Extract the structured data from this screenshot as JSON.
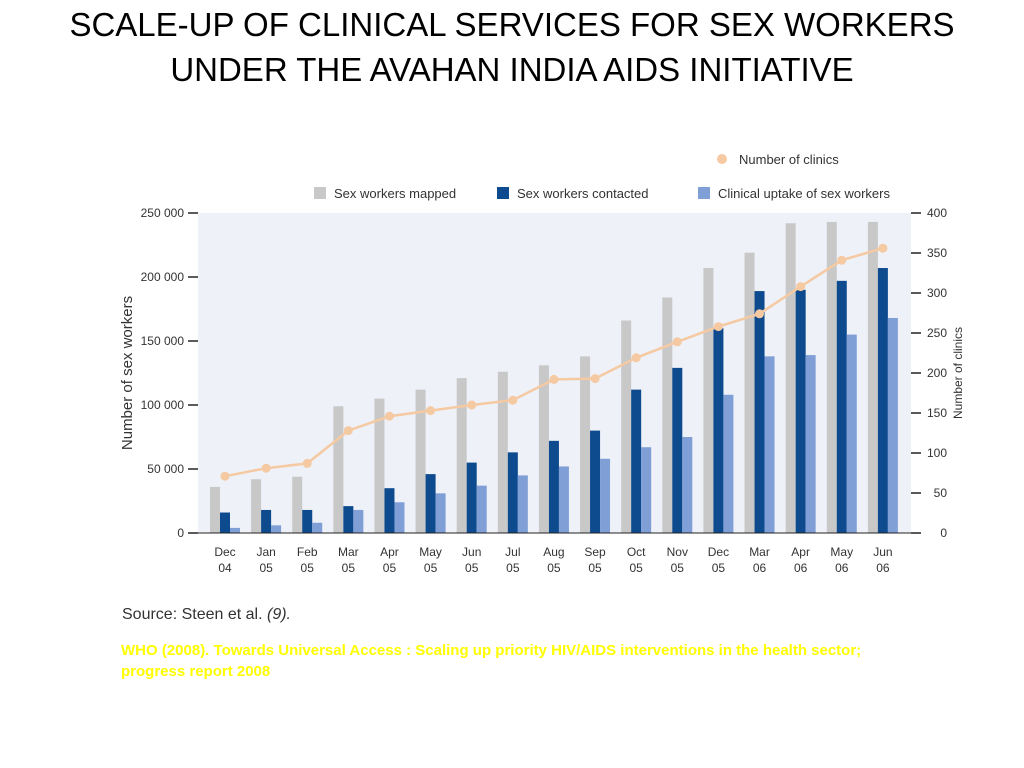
{
  "slide": {
    "title": "SCALE-UP OF CLINICAL SERVICES FOR SEX WORKERS UNDER THE AVAHAN INDIA AIDS INITIATIVE",
    "source_prefix": "Source: Steen et al.",
    "source_ref": "(9).",
    "citation": "WHO (2008). Towards Universal Access : Scaling up priority HIV/AIDS interventions in the health sector; progress report 2008"
  },
  "chart_data": {
    "type": "bar",
    "categories": [
      [
        "Dec",
        "04"
      ],
      [
        "Jan",
        "05"
      ],
      [
        "Feb",
        "05"
      ],
      [
        "Mar",
        "05"
      ],
      [
        "Apr",
        "05"
      ],
      [
        "May",
        "05"
      ],
      [
        "Jun",
        "05"
      ],
      [
        "Jul",
        "05"
      ],
      [
        "Aug",
        "05"
      ],
      [
        "Sep",
        "05"
      ],
      [
        "Oct",
        "05"
      ],
      [
        "Nov",
        "05"
      ],
      [
        "Dec",
        "05"
      ],
      [
        "Mar",
        "06"
      ],
      [
        "Apr",
        "06"
      ],
      [
        "May",
        "06"
      ],
      [
        "Jun",
        "06"
      ]
    ],
    "series": [
      {
        "name": "Sex workers mapped",
        "color": "#c8c8c8",
        "values": [
          36000,
          42000,
          44000,
          99000,
          105000,
          112000,
          121000,
          126000,
          131000,
          138000,
          166000,
          184000,
          207000,
          219000,
          242000,
          243000,
          243000
        ]
      },
      {
        "name": "Sex workers contacted",
        "color": "#0d4a8e",
        "values": [
          16000,
          18000,
          18000,
          21000,
          35000,
          46000,
          55000,
          63000,
          72000,
          80000,
          112000,
          129000,
          160000,
          189000,
          190000,
          197000,
          207000
        ]
      },
      {
        "name": "Clinical uptake of sex workers",
        "color": "#7f9fd6",
        "values": [
          4000,
          6000,
          8000,
          18000,
          24000,
          31000,
          37000,
          45000,
          52000,
          58000,
          67000,
          75000,
          108000,
          138000,
          139000,
          155000,
          168000
        ]
      }
    ],
    "line_series": {
      "name": "Number of clinics",
      "color": "#f5c9a1",
      "axis": "right",
      "values": [
        71,
        81,
        87,
        128,
        146,
        153,
        160,
        166,
        192,
        193,
        219,
        239,
        258,
        274,
        308,
        341,
        356
      ]
    },
    "ylabel": "Number of sex workers",
    "y2label": "Number of clinics",
    "ylim": [
      0,
      250000
    ],
    "y2lim": [
      0,
      400
    ],
    "yticks": [
      "0",
      "50 000",
      "100 000",
      "150 000",
      "200 000",
      "250 000"
    ],
    "yticks_values": [
      0,
      50000,
      100000,
      150000,
      200000,
      250000
    ],
    "y2ticks": [
      "0",
      "50",
      "100",
      "150",
      "200",
      "250",
      "300",
      "350",
      "400"
    ],
    "y2ticks_values": [
      0,
      50,
      100,
      150,
      200,
      250,
      300,
      350,
      400
    ],
    "plot_background": "#eef1f7",
    "grid": false,
    "legend_position": "top-right"
  }
}
